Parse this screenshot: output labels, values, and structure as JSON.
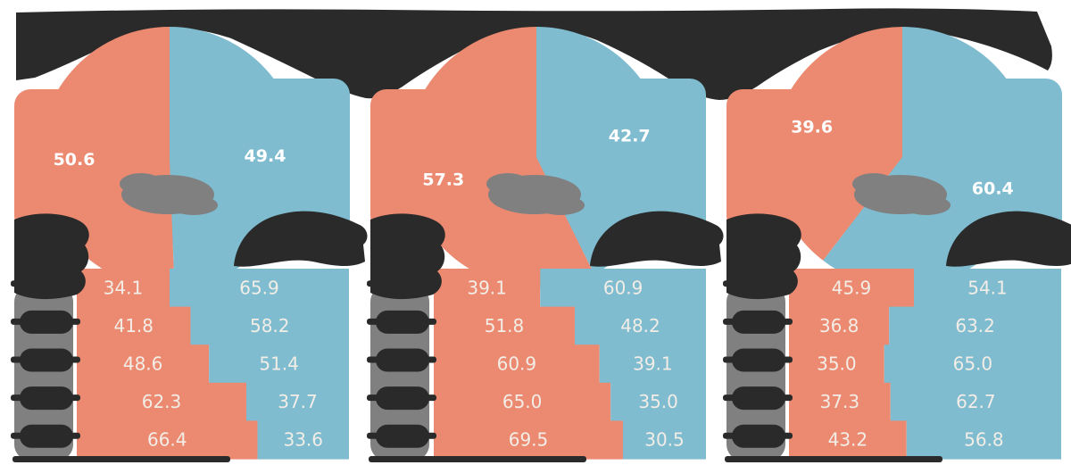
{
  "colors": {
    "background": "#ffffff",
    "salmon": "#EC8A71",
    "blue": "#7FBCCF",
    "dark_smear": "#2A2A2A",
    "gray_smear": "#808080",
    "pie_label_text": "#FFFFFF",
    "bar_label_text": "#F2EDE6"
  },
  "obscured_regions": {
    "title_band": "smeared unreadable dark text band across top",
    "pie_center_total": "smeared unreadable gray text at pie center",
    "row_labels": "smeared unreadable row labels left of each bar chart",
    "annotations": "smeared unreadable dark annotation between pie and bars"
  },
  "chart_data": [
    {
      "type": "pie+stacked-bar",
      "pie": {
        "series": [
          "salmon",
          "blue"
        ],
        "values": [
          50.6,
          49.4
        ]
      },
      "bar_rows": [
        [
          34.1,
          65.9
        ],
        [
          41.8,
          58.2
        ],
        [
          48.6,
          51.4
        ],
        [
          62.3,
          37.7
        ],
        [
          66.4,
          33.6
        ]
      ]
    },
    {
      "type": "pie+stacked-bar",
      "pie": {
        "series": [
          "salmon",
          "blue"
        ],
        "values": [
          57.3,
          42.7
        ]
      },
      "bar_rows": [
        [
          39.1,
          60.9
        ],
        [
          51.8,
          48.2
        ],
        [
          60.9,
          39.1
        ],
        [
          65.0,
          35.0
        ],
        [
          69.5,
          30.5
        ]
      ]
    },
    {
      "type": "pie+stacked-bar",
      "pie": {
        "series": [
          "salmon",
          "blue"
        ],
        "values": [
          39.6,
          60.4
        ]
      },
      "bar_rows": [
        [
          45.9,
          54.1
        ],
        [
          36.8,
          63.2
        ],
        [
          35.0,
          65.0
        ],
        [
          37.3,
          62.7
        ],
        [
          43.2,
          56.8
        ]
      ]
    }
  ]
}
